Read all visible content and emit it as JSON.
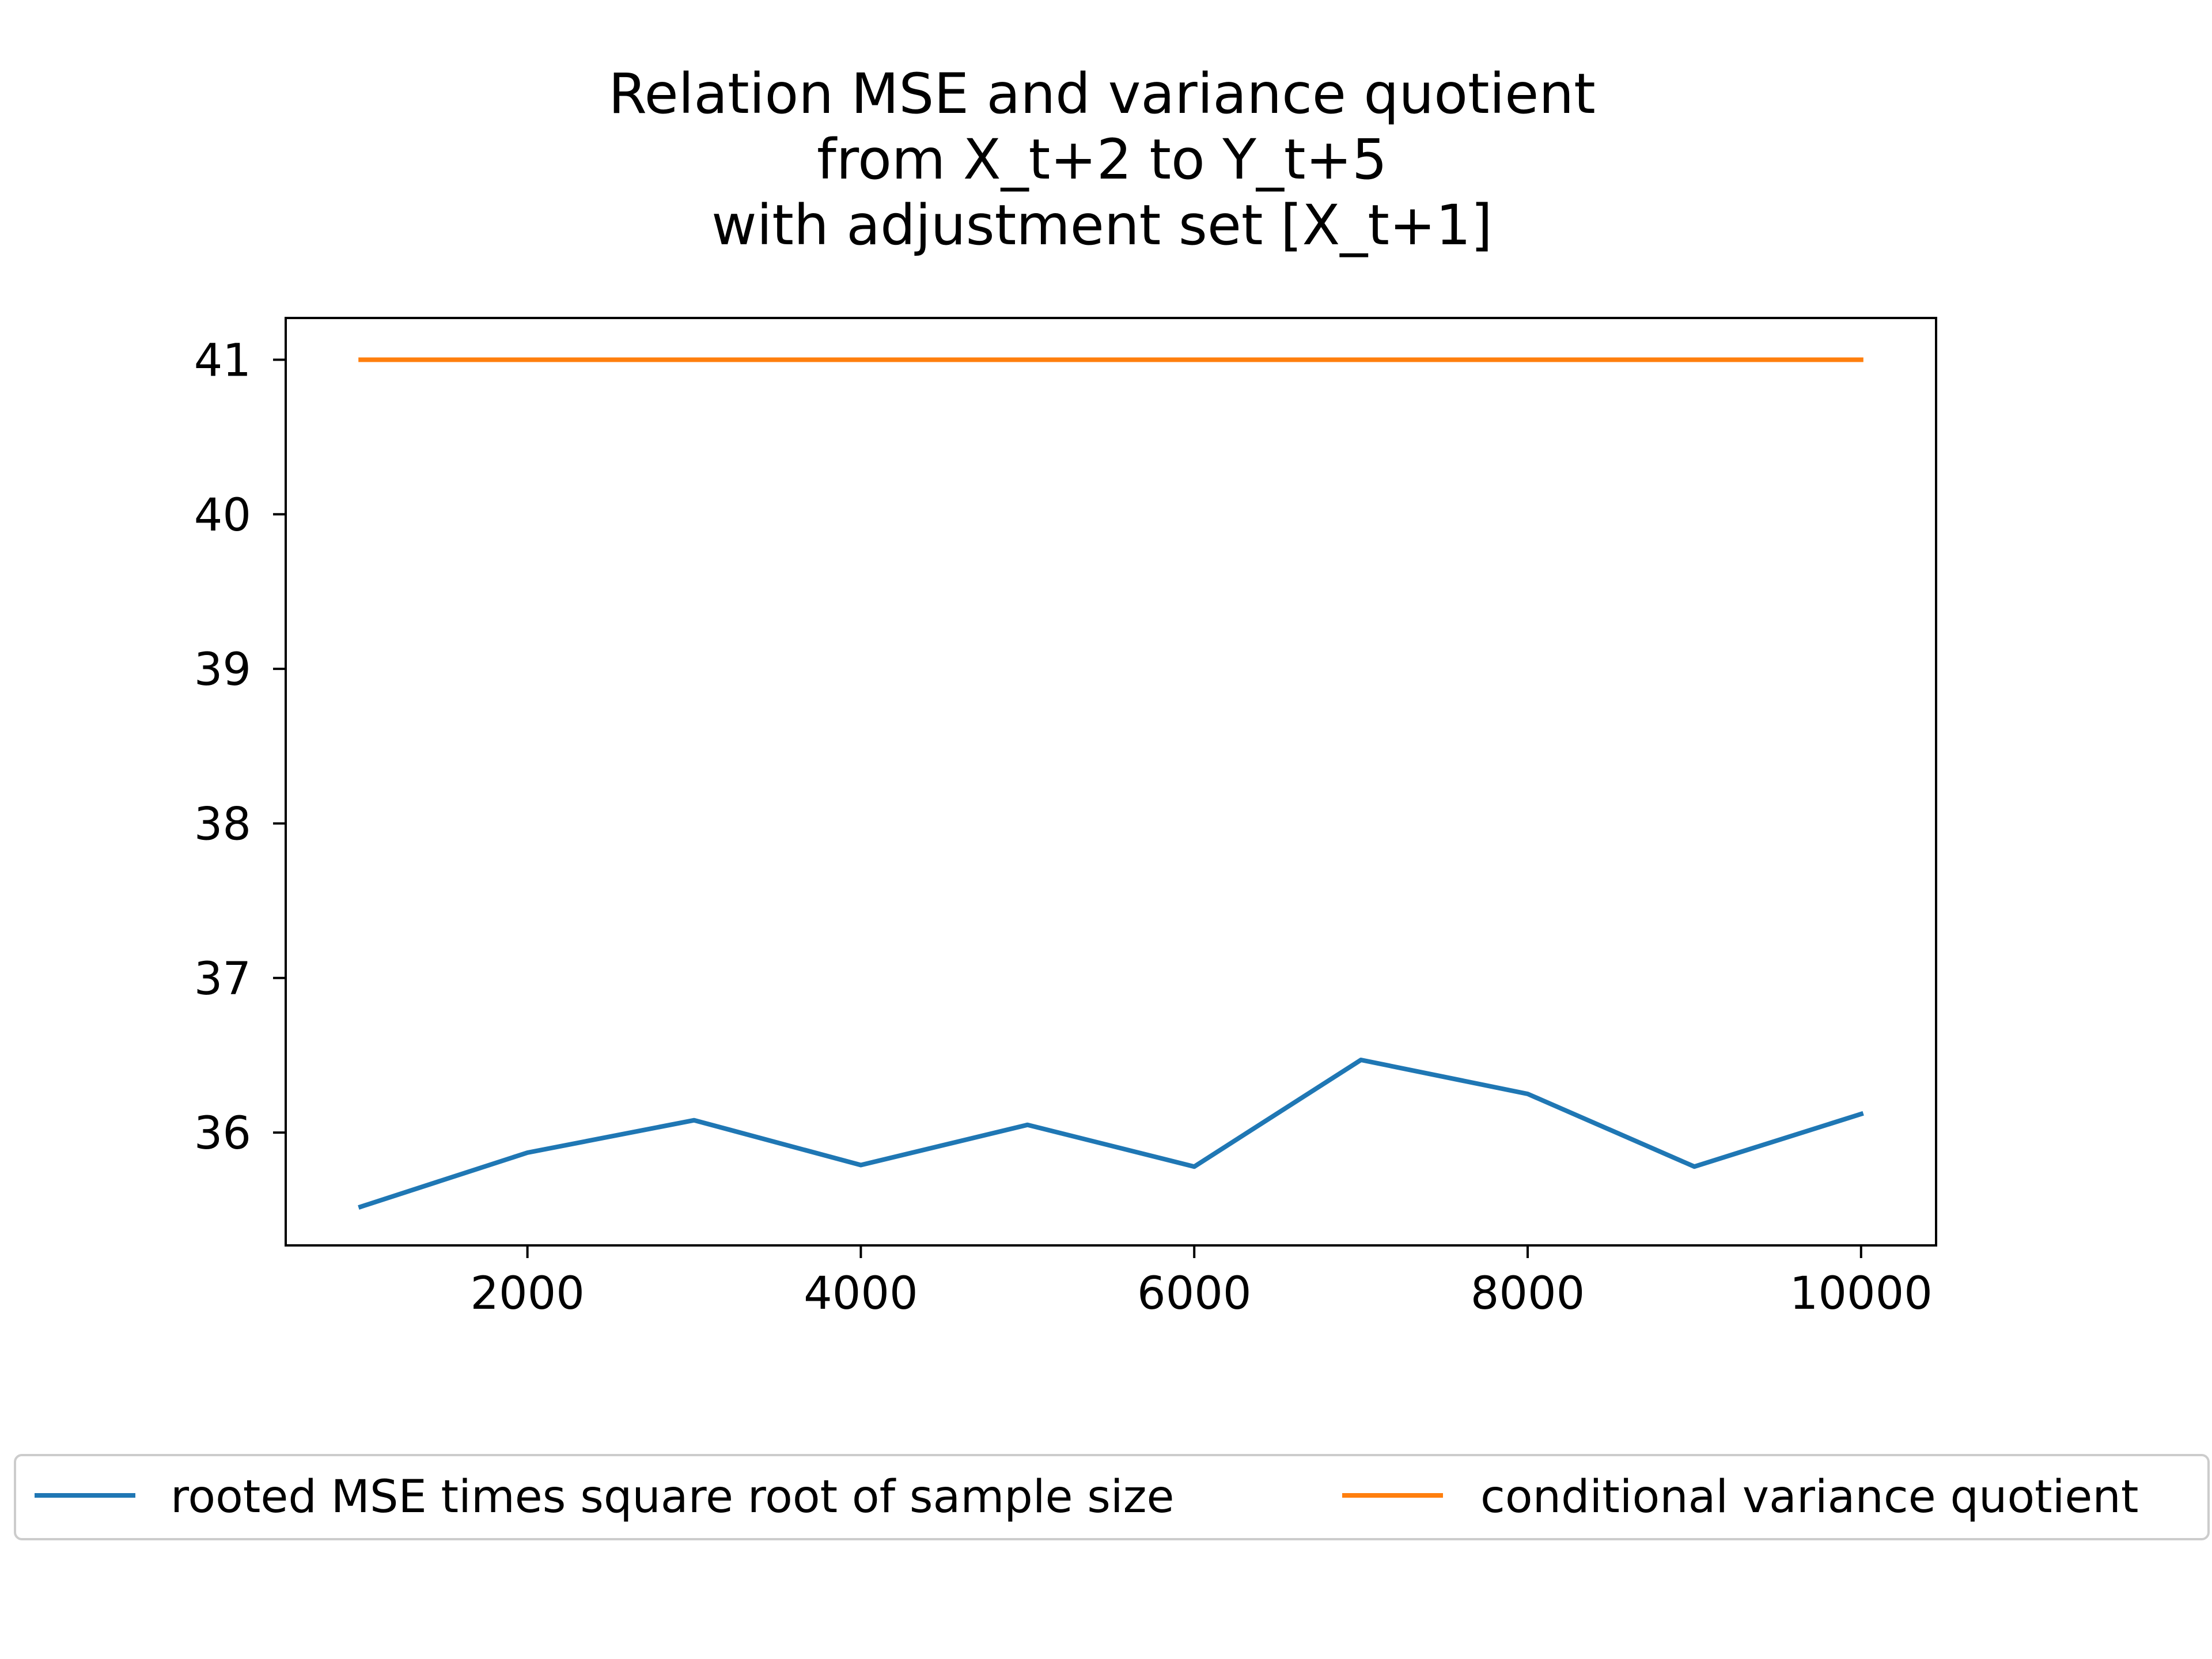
{
  "chart_data": {
    "type": "line",
    "title_lines": [
      "Relation MSE and variance quotient",
      "from X_t+2 to Y_t+5",
      "with adjustment set [X_t+1]"
    ],
    "xlabel": "",
    "ylabel": "",
    "x": [
      1000,
      2000,
      3000,
      4000,
      5000,
      6000,
      7000,
      8000,
      9000,
      10000
    ],
    "xlim": [
      550,
      10450
    ],
    "ylim": [
      35.27,
      41.27
    ],
    "xticks": [
      2000,
      4000,
      6000,
      8000,
      10000
    ],
    "yticks": [
      36,
      37,
      38,
      39,
      40,
      41
    ],
    "grid": false,
    "legend_position": "below plot",
    "series": [
      {
        "name": "rooted MSE times square root of sample size",
        "color": "#1f77b4",
        "values": [
          35.52,
          35.87,
          36.08,
          35.79,
          36.05,
          35.78,
          36.47,
          36.25,
          35.78,
          36.12
        ]
      },
      {
        "name": "conditional variance quotient",
        "color": "#ff7f0e",
        "values": [
          41.0,
          41.0,
          41.0,
          41.0,
          41.0,
          41.0,
          41.0,
          41.0,
          41.0,
          41.0
        ]
      }
    ]
  }
}
